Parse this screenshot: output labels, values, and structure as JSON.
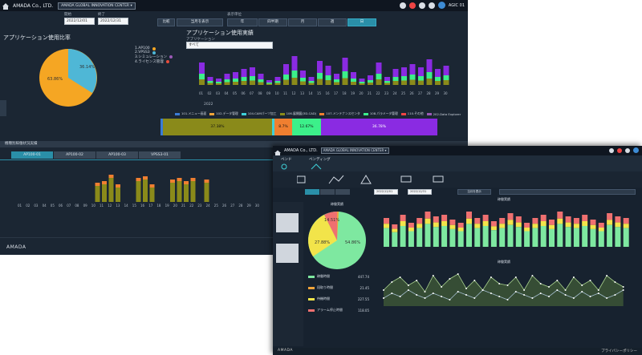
{
  "window1": {
    "brand": "AMADA Co., LTD.",
    "site_select": "AMADA GLOBAL INNOVATION CENTER",
    "user": "AGIC 01",
    "start_label": "開始",
    "end_label": "終了",
    "start_date": "2022/12/01",
    "end_date": "2022/12/31",
    "period_label": "表示単位",
    "compare_btn": "比較",
    "show_current": "当月を表示",
    "unit_buttons": [
      "年",
      "四半期",
      "月",
      "週",
      "日"
    ],
    "usage_ratio_title": "アプリケーション使用比率",
    "usage_record_title": "アプリケーション使用実績",
    "app_label": "アプリケーション",
    "app_select": "すべて",
    "pie_legend": [
      "1.AP100",
      "2.VPSS3",
      "3.シミュレーション",
      "4.ライセンス管理"
    ],
    "pie_labels": [
      "63.86%",
      "36.14%"
    ],
    "bar_legend": [
      "101.メニュー画面",
      "102.データ管理",
      "104.CAMパーツ加工",
      "106.展開図(3D-CAD)",
      "107.メンテナンスセンタ",
      "108.パラメータ管理",
      "110.その他",
      "202.Data Explorer",
      "204.Material Explorer"
    ],
    "strip_labels": [
      "37.38%",
      "8.7%",
      "12.67%",
      "36.78%"
    ],
    "axis_year": "2022",
    "days": [
      "01",
      "02",
      "03",
      "04",
      "05",
      "06",
      "07",
      "08",
      "09",
      "10",
      "11",
      "12",
      "13",
      "14",
      "15",
      "16",
      "17",
      "18",
      "19",
      "20",
      "21",
      "22",
      "23",
      "24",
      "25",
      "26",
      "27",
      "28",
      "29",
      "30",
      "31"
    ],
    "sub_title": "機種別稼働状況実績",
    "machine_tabs": [
      "AP100-01",
      "AP100-02",
      "AP100-03",
      "VPSS3-01"
    ],
    "footer_logo": "AMADA",
    "side_tab": "ニュース"
  },
  "window2": {
    "brand": "AMADA Co., LTD.",
    "site_select": "AMADA GLOBAL INNOVATION CENTER",
    "bend": "ベンド",
    "bending": "ベンディング",
    "start_date": "2022/12/01",
    "end_date": "2022/12/31",
    "show_current": "当月を表示",
    "pie_title": "稼働実績",
    "bar_title": "稼働実績",
    "line_title": "稼働実績",
    "pie_labels": [
      "54.86%",
      "27.88%",
      "14.51%"
    ],
    "legend": [
      {
        "name": "稼働時間",
        "value": "447.74",
        "color": "#7ee8a0"
      },
      {
        "name": "段取り時間",
        "value": "21.45",
        "color": "#f0a43a"
      },
      {
        "name": "待機時間",
        "value": "227.55",
        "color": "#f2e44a"
      },
      {
        "name": "アラーム停止時間",
        "value": "118.05",
        "color": "#ef7070"
      }
    ],
    "footer_logo": "AMADA",
    "privacy": "プライバシーポリシー"
  },
  "colors": {
    "bg": "#1b2633",
    "accent": "#2a8fa8",
    "olive": "#8a8a1a",
    "orange": "#f07f30",
    "cyan": "#3fd0d8",
    "purple": "#8a2be2",
    "green": "#3cf08a"
  },
  "chart_data": [
    {
      "type": "pie",
      "title": "アプリケーション使用比率",
      "categories": [
        "AP100",
        "VPSS3"
      ],
      "values": [
        63.86,
        36.14
      ]
    },
    {
      "type": "bar",
      "title": "稼働実績",
      "series": [
        {
          "name": "稼働時間",
          "values": [
            54.86
          ]
        },
        {
          "name": "待機時間",
          "values": [
            27.88
          ]
        },
        {
          "name": "アラーム停止時間",
          "values": [
            14.51
          ]
        }
      ]
    }
  ]
}
